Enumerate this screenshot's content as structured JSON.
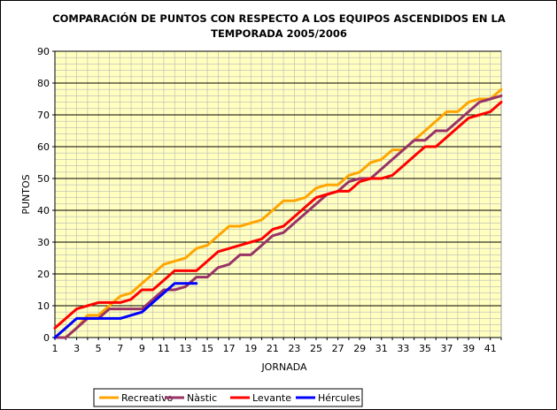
{
  "chart_data": {
    "type": "line",
    "title_lines": [
      "COMPARACIÓN DE PUNTOS CON RESPECTO A LOS EQUIPOS ASCENDIDOS EN LA",
      "TEMPORADA 2005/2006"
    ],
    "xlabel": "JORNADA",
    "ylabel": "PUNTOS",
    "xlim": [
      1,
      42
    ],
    "ylim": [
      0,
      90
    ],
    "x_ticks": [
      1,
      3,
      5,
      7,
      9,
      11,
      13,
      15,
      17,
      19,
      21,
      23,
      25,
      27,
      29,
      31,
      33,
      35,
      37,
      39,
      41
    ],
    "y_ticks": [
      0,
      10,
      20,
      30,
      40,
      50,
      60,
      70,
      80,
      90
    ],
    "grid": true,
    "background_color": "#FFFFC0",
    "legend_position": "bottom",
    "series": [
      {
        "name": "Recreativo",
        "color": "#FFA500",
        "x": [
          1,
          2,
          3,
          4,
          5,
          6,
          7,
          8,
          9,
          10,
          11,
          12,
          13,
          14,
          15,
          16,
          17,
          18,
          19,
          20,
          21,
          22,
          23,
          24,
          25,
          26,
          27,
          28,
          29,
          30,
          31,
          32,
          33,
          34,
          35,
          36,
          37,
          38,
          39,
          40,
          41,
          42
        ],
        "values": [
          0,
          0,
          3,
          7,
          7,
          10,
          13,
          14,
          17,
          20,
          23,
          24,
          25,
          28,
          29,
          32,
          35,
          35,
          36,
          37,
          40,
          43,
          43,
          44,
          47,
          48,
          48,
          51,
          52,
          55,
          56,
          59,
          59,
          62,
          65,
          68,
          71,
          71,
          74,
          75,
          75,
          78
        ]
      },
      {
        "name": "Nàstic",
        "color": "#993366",
        "x": [
          1,
          2,
          3,
          4,
          5,
          6,
          7,
          8,
          9,
          10,
          11,
          12,
          13,
          14,
          15,
          16,
          17,
          18,
          19,
          20,
          21,
          22,
          23,
          24,
          25,
          26,
          27,
          28,
          29,
          30,
          31,
          32,
          33,
          34,
          35,
          36,
          37,
          38,
          39,
          40,
          41,
          42
        ],
        "values": [
          0,
          0,
          3,
          6,
          6,
          9,
          9,
          9,
          9,
          12,
          15,
          15,
          16,
          19,
          19,
          22,
          23,
          26,
          26,
          29,
          32,
          33,
          36,
          39,
          42,
          45,
          46,
          49,
          50,
          50,
          53,
          56,
          59,
          62,
          62,
          65,
          65,
          68,
          71,
          74,
          75,
          76
        ]
      },
      {
        "name": "Levante",
        "color": "#FF0000",
        "x": [
          1,
          2,
          3,
          4,
          5,
          6,
          7,
          8,
          9,
          10,
          11,
          12,
          13,
          14,
          15,
          16,
          17,
          18,
          19,
          20,
          21,
          22,
          23,
          24,
          25,
          26,
          27,
          28,
          29,
          30,
          31,
          32,
          33,
          34,
          35,
          36,
          37,
          38,
          39,
          40,
          41,
          42
        ],
        "values": [
          3,
          6,
          9,
          10,
          11,
          11,
          11,
          12,
          15,
          15,
          18,
          21,
          21,
          21,
          24,
          27,
          28,
          29,
          30,
          31,
          34,
          35,
          38,
          41,
          44,
          45,
          46,
          46,
          49,
          50,
          50,
          51,
          54,
          57,
          60,
          60,
          63,
          66,
          69,
          70,
          71,
          74
        ]
      },
      {
        "name": "Hércules",
        "color": "#0000FF",
        "x": [
          1,
          2,
          3,
          4,
          5,
          6,
          7,
          8,
          9,
          10,
          11,
          12,
          13,
          14
        ],
        "values": [
          0,
          3,
          6,
          6,
          6,
          6,
          6,
          7,
          8,
          11,
          14,
          17,
          17,
          17
        ]
      }
    ]
  }
}
